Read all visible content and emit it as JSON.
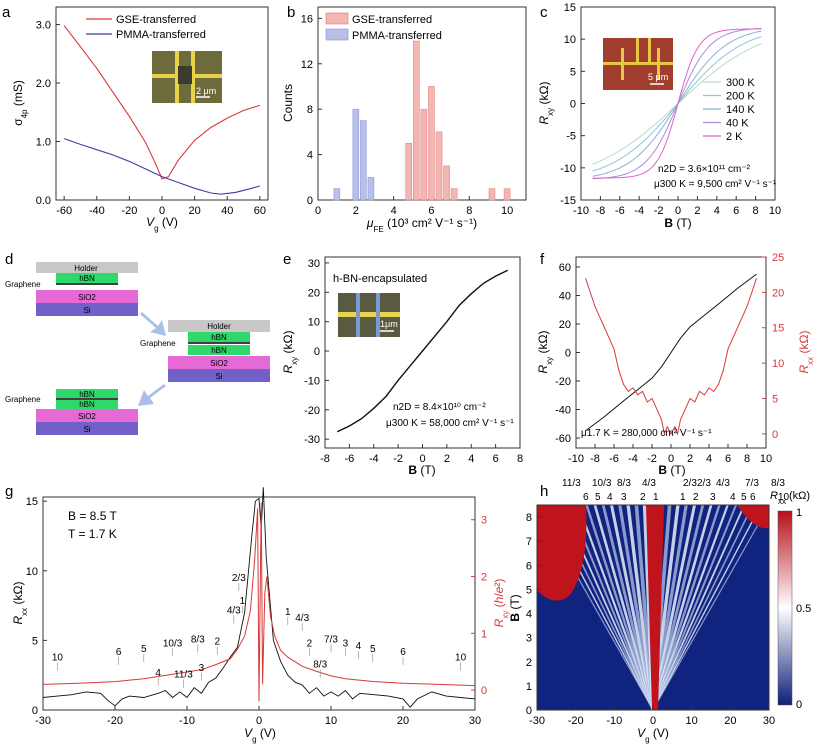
{
  "colors": {
    "red": "#d9383a",
    "blue": "#3b3fa8",
    "green": "#2fd86a",
    "magenta": "#e66ad6",
    "purple": "#7060c8",
    "gray": "#c8c8c8",
    "lightred": "#f3b6b2",
    "lightblue": "#b8c0ea"
  },
  "panels": {
    "a": {
      "letter": "a",
      "chart_data": {
        "type": "line",
        "ylabel": "σ4p (mS)",
        "xlabel": "Vg (V)",
        "xlim": [
          -65,
          65
        ],
        "ylim": [
          0,
          3.3
        ],
        "xticks": [
          "-60",
          "-40",
          "-20",
          "0",
          "20",
          "40",
          "60"
        ],
        "yticks": [
          "0.0",
          "1.0",
          "2.0",
          "3.0"
        ],
        "series": [
          {
            "name": "GSE-transferred",
            "x": [
              -60,
              -50,
              -40,
              -30,
              -20,
              -10,
              -4,
              0,
              4,
              10,
              20,
              30,
              40,
              50,
              60
            ],
            "y": [
              2.98,
              2.62,
              2.25,
              1.84,
              1.43,
              0.98,
              0.62,
              0.36,
              0.4,
              0.68,
              1.02,
              1.24,
              1.4,
              1.53,
              1.62
            ]
          },
          {
            "name": "PMMA-transferred",
            "x": [
              -60,
              -50,
              -40,
              -30,
              -20,
              -10,
              0,
              10,
              20,
              30,
              36,
              45,
              55,
              60
            ],
            "y": [
              1.05,
              0.95,
              0.86,
              0.77,
              0.66,
              0.53,
              0.4,
              0.3,
              0.2,
              0.12,
              0.1,
              0.13,
              0.2,
              0.24
            ]
          }
        ],
        "inset_scale": "2 μm"
      }
    },
    "b": {
      "letter": "b",
      "chart_data": {
        "type": "bar",
        "ylabel": "Counts",
        "xlabel": "μFE (10³ cm² V⁻¹ s⁻¹)",
        "xlim": [
          0,
          11
        ],
        "ylim": [
          0,
          17
        ],
        "xticks": [
          "0",
          "2",
          "4",
          "6",
          "8",
          "10"
        ],
        "yticks": [
          "0",
          "4",
          "8",
          "12",
          "16"
        ],
        "series": [
          {
            "name": "GSE-transferred",
            "x": [
              4.8,
              5.2,
              5.6,
              6.0,
              6.4,
              6.8,
              7.2,
              9.2,
              10.0
            ],
            "y": [
              5,
              14,
              8,
              10,
              6,
              3,
              1,
              1,
              1
            ]
          },
          {
            "name": "PMMA-transferred",
            "x": [
              1.0,
              2.0,
              2.4,
              2.8
            ],
            "y": [
              1,
              8,
              7,
              2
            ]
          }
        ]
      }
    },
    "c": {
      "letter": "c",
      "chart_data": {
        "type": "line",
        "ylabel": "Rxy (kΩ)",
        "xlabel": "B (T)",
        "xlim": [
          -10,
          10
        ],
        "ylim": [
          -15,
          15
        ],
        "xticks": [
          "-10",
          "-8",
          "-6",
          "-4",
          "-2",
          "0",
          "2",
          "4",
          "6",
          "8",
          "10"
        ],
        "yticks": [
          "-15",
          "-10",
          "-5",
          "0",
          "5",
          "10",
          "15"
        ],
        "series": [
          {
            "name": "300 K",
            "slope": 1.4,
            "sat": 12.5
          },
          {
            "name": "200 K",
            "slope": 1.8,
            "sat": 12.2
          },
          {
            "name": "140 K",
            "slope": 2.4,
            "sat": 12.0
          },
          {
            "name": "40 K",
            "slope": 3.6,
            "sat": 11.8
          },
          {
            "name": "2 K",
            "slope": 5.5,
            "sat": 11.6
          }
        ],
        "annot1": "n2D = 3.6×10¹¹ cm⁻²",
        "annot2": "μ300 K = 9,500 cm² V⁻¹ s⁻¹",
        "inset_scale": "5 μm"
      }
    },
    "d": {
      "letter": "d",
      "stack1": {
        "holder": "Holder",
        "hbn": "hBN",
        "graphene": "Graphene",
        "sio2": "SiO2",
        "si": "Si"
      },
      "stack2": {
        "holder": "Holder",
        "hbn1": "hBN",
        "graphene": "Graphene",
        "hbn2": "hBN",
        "sio2": "SiO2",
        "si": "Si"
      },
      "stack3": {
        "hbn1": "hBN",
        "hbn2": "hBN",
        "graphene": "Graphene",
        "sio2": "SiO2",
        "si": "Si"
      }
    },
    "e": {
      "letter": "e",
      "chart_data": {
        "type": "line",
        "title": "h-BN-encapsulated",
        "ylabel": "Rxy (kΩ)",
        "xlabel": "B (T)",
        "xlim": [
          -8,
          8
        ],
        "ylim": [
          -33,
          32
        ],
        "xticks": [
          "-8",
          "-6",
          "-4",
          "-2",
          "0",
          "2",
          "4",
          "6",
          "8"
        ],
        "yticks": [
          "-30",
          "-20",
          "-10",
          "0",
          "10",
          "20",
          "30"
        ],
        "x": [
          -7,
          -6,
          -5,
          -4,
          -3,
          -2,
          -1,
          0,
          1,
          2,
          3,
          4,
          5,
          6,
          7
        ],
        "y": [
          -27.5,
          -25.5,
          -23,
          -19.5,
          -15.5,
          -10,
          -5,
          0,
          5,
          10,
          15.5,
          19.5,
          23,
          25.5,
          27.5
        ],
        "annot1": "n2D = 8.4×10¹⁰ cm⁻²",
        "annot2": "μ300 K = 58,000 cm² V⁻¹ s⁻¹",
        "inset_scale": "1μm"
      }
    },
    "f": {
      "letter": "f",
      "chart_data": {
        "type": "line",
        "ylabel": "Rxy (kΩ)",
        "y2label": "Rxx (kΩ)",
        "xlabel": "B (T)",
        "xlim": [
          -10,
          10
        ],
        "ylim": [
          -67,
          67
        ],
        "y2lim": [
          -2,
          25
        ],
        "xticks": [
          "-10",
          "-8",
          "-6",
          "-4",
          "-2",
          "0",
          "2",
          "4",
          "6",
          "8",
          "10"
        ],
        "yticks": [
          "-60",
          "-40",
          "-20",
          "0",
          "20",
          "40",
          "60"
        ],
        "y2ticks": [
          "0",
          "5",
          "10",
          "15",
          "20",
          "25"
        ],
        "series": [
          {
            "name": "Rxy",
            "x": [
              -9,
              -7,
              -5,
              -3.5,
              -2,
              -1,
              0,
              1,
              2,
              3.5,
              5,
              7,
              9
            ],
            "y": [
              -55,
              -45,
              -34,
              -26,
              -18,
              -10,
              0,
              10,
              18,
              26,
              34,
              45,
              55
            ]
          },
          {
            "name": "Rxx",
            "x": [
              -9,
              -8.5,
              -8,
              -7,
              -6,
              -5.5,
              -5,
              -4.5,
              -4,
              -3.5,
              -3,
              -2.5,
              -2,
              -1.5,
              -1,
              -0.7,
              -0.4,
              0,
              0.4,
              0.7,
              1,
              1.5,
              2,
              2.5,
              3,
              3.5,
              4,
              4.5,
              5,
              5.5,
              6,
              7,
              8,
              8.5,
              9
            ],
            "y": [
              22,
              20,
              18,
              15,
              12,
              9,
              7,
              6,
              6.5,
              5.5,
              6,
              4.5,
              5,
              3.5,
              2,
              0,
              1,
              0,
              1,
              0,
              2,
              3.5,
              5,
              4.5,
              6,
              5.5,
              6.5,
              6,
              7,
              9,
              12,
              15,
              18,
              20,
              22
            ]
          }
        ],
        "annot1": "μ1.7 K = 280,000 cm² V⁻¹ s⁻¹"
      }
    },
    "g": {
      "letter": "g",
      "chart_data": {
        "type": "line",
        "ylabel": "Rxx (kΩ)",
        "y2label": "Rxy (h/e²)",
        "xlabel": "Vg (V)",
        "xlim": [
          -30,
          30
        ],
        "ylim": [
          0,
          15.3
        ],
        "y2lim": [
          -0.35,
          3.4
        ],
        "xticks": [
          "-30",
          "-20",
          "-10",
          "0",
          "10",
          "20",
          "30"
        ],
        "yticks": [
          "0",
          "5",
          "10",
          "15"
        ],
        "y2ticks": [
          "0",
          "1",
          "2",
          "3"
        ],
        "annot1": "B = 8.5 T",
        "annot2": "T = 1.7 K",
        "series": [
          {
            "name": "Rxx",
            "x": [
              -30,
              -28,
              -26,
              -24,
              -22,
              -21,
              -20,
              -19,
              -18,
              -16,
              -14,
              -13,
              -12,
              -11,
              -10,
              -9,
              -8,
              -7,
              -6,
              -5,
              -4,
              -3,
              -2,
              -1,
              -0.5,
              0,
              0.3,
              0.6,
              1,
              1.5,
              2,
              3,
              4,
              5,
              6,
              7,
              8,
              9,
              10,
              11,
              12,
              13,
              14,
              16,
              18,
              20,
              21,
              22,
              24,
              26,
              28,
              30
            ],
            "y": [
              0.9,
              1.0,
              1.1,
              1.3,
              1.2,
              0.7,
              0.3,
              0.8,
              1.0,
              0.9,
              1.2,
              1.4,
              0.9,
              1.3,
              0.9,
              1.6,
              1.2,
              2.0,
              2.3,
              3.0,
              3.8,
              4.5,
              7.0,
              12.5,
              15.0,
              15.2,
              13.0,
              16.0,
              11.0,
              8.0,
              5.0,
              3.5,
              2.5,
              2.0,
              1.8,
              1.2,
              1.6,
              1.0,
              1.3,
              1.0,
              1.4,
              0.8,
              1.2,
              1.1,
              1.0,
              0.8,
              0.2,
              0.8,
              1.3,
              1.0,
              0.9,
              0.8
            ]
          },
          {
            "name": "Rxy",
            "x": [
              -30,
              -25,
              -20,
              -16,
              -12,
              -8,
              -6,
              -4,
              -3,
              -2,
              -1.2,
              -0.6,
              -0.2,
              0,
              0.3,
              0.5,
              0.8,
              1.1,
              1.6,
              2.2,
              3,
              4,
              5,
              6,
              8,
              10,
              12,
              16,
              20,
              25,
              30
            ],
            "y": [
              0.1,
              0.12,
              0.15,
              0.2,
              0.28,
              0.36,
              0.45,
              0.55,
              0.72,
              0.95,
              1.4,
              2.3,
              3.2,
              -0.2,
              3.3,
              0.1,
              1.7,
              2.0,
              1.3,
              0.95,
              0.7,
              0.58,
              0.5,
              0.42,
              0.33,
              0.25,
              0.2,
              0.15,
              0.12,
              0.1,
              0.08
            ]
          }
        ],
        "plateaus_left": [
          {
            "t": "10",
            "x": -28,
            "y": 0.45
          },
          {
            "t": "6",
            "x": -19.5,
            "y": 0.55
          },
          {
            "t": "5",
            "x": -16,
            "y": 0.6
          },
          {
            "t": "4",
            "x": -14,
            "y": 0.18
          },
          {
            "t": "10/3",
            "x": -12,
            "y": 0.7
          },
          {
            "t": "11/3",
            "x": -10.5,
            "y": 0.15
          },
          {
            "t": "8/3",
            "x": -8.5,
            "y": 0.77
          },
          {
            "t": "3",
            "x": -8,
            "y": 0.27
          },
          {
            "t": "2",
            "x": -5.8,
            "y": 0.73
          },
          {
            "t": "4/3",
            "x": -3.5,
            "y": 1.28
          },
          {
            "t": "1",
            "x": -2.3,
            "y": 1.45
          },
          {
            "t": "2/3",
            "x": -2.8,
            "y": 1.85
          }
        ],
        "plateaus_right": [
          {
            "t": "1",
            "x": 4,
            "y": 1.25
          },
          {
            "t": "4/3",
            "x": 6,
            "y": 1.15
          },
          {
            "t": "2",
            "x": 7,
            "y": 0.7
          },
          {
            "t": "8/3",
            "x": 8.5,
            "y": 0.33
          },
          {
            "t": "7/3",
            "x": 10,
            "y": 0.77
          },
          {
            "t": "3",
            "x": 12,
            "y": 0.7
          },
          {
            "t": "4",
            "x": 13.8,
            "y": 0.65
          },
          {
            "t": "5",
            "x": 15.8,
            "y": 0.6
          },
          {
            "t": "6",
            "x": 20,
            "y": 0.55
          },
          {
            "t": "10",
            "x": 28,
            "y": 0.45
          }
        ]
      }
    },
    "h": {
      "letter": "h",
      "chart_data": {
        "type": "heatmap",
        "ylabel": "B (T)",
        "xlabel": "Vg (V)",
        "xlim": [
          -30,
          30
        ],
        "ylim": [
          0,
          8.5
        ],
        "xticks": [
          "-30",
          "-20",
          "-10",
          "0",
          "10",
          "20",
          "30"
        ],
        "yticks": [
          "0",
          "1",
          "2",
          "3",
          "4",
          "5",
          "6",
          "7",
          "8"
        ],
        "colorbar_label": "Rxx (kΩ)",
        "colorbar_ticks": [
          "1",
          "0.5",
          "0"
        ],
        "top_labels_row1": [
          "11/3",
          "10/3",
          "8/3",
          "4/3",
          "2/3",
          "2/3",
          "4/3",
          "7/3",
          "8/3"
        ],
        "top_labels_row2": [
          "6",
          "5",
          "4",
          "3",
          "2",
          "1",
          "1",
          "2",
          "3",
          "4",
          "5",
          "6",
          "10"
        ]
      }
    }
  }
}
